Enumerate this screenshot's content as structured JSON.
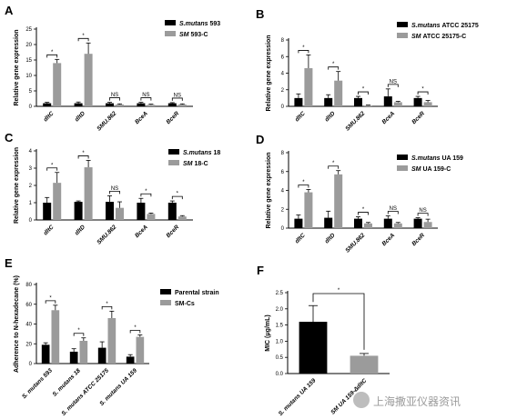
{
  "colors": {
    "parental": "#000000",
    "sm": "#9b9b9b",
    "watermark": "#9b9b9b"
  },
  "watermark": {
    "text": "上海撒亚仪器资讯",
    "icon": "wechat-logo-icon"
  },
  "chart_data": [
    {
      "type": "bar",
      "letter": "A",
      "title": "",
      "ylabel": "Relative gene expression",
      "ylim": [
        0,
        25
      ],
      "yticks": [
        0,
        5,
        10,
        15,
        20,
        25
      ],
      "categories": [
        "dltC",
        "dltD",
        "SMU.862",
        "BceA",
        "BceR"
      ],
      "series": [
        {
          "name": "S.mutans 593",
          "values": [
            1.0,
            1.0,
            1.0,
            1.0,
            1.0
          ],
          "errors": [
            0.3,
            0.4,
            0.3,
            0.3,
            0.2
          ]
        },
        {
          "name": "SM 593-C",
          "values": [
            14.0,
            17.0,
            0.6,
            0.5,
            0.6
          ],
          "errors": [
            1.2,
            3.5,
            0.2,
            0.2,
            0.2
          ]
        }
      ],
      "annotations": [
        "*",
        "*",
        "NS",
        "NS",
        "NS"
      ]
    },
    {
      "type": "bar",
      "letter": "B",
      "title": "",
      "ylabel": "Relative gene expression",
      "ylim": [
        0,
        8
      ],
      "yticks": [
        0,
        2,
        4,
        6,
        8
      ],
      "categories": [
        "dltC",
        "dltD",
        "SMU.862",
        "BceA",
        "BceR"
      ],
      "series": [
        {
          "name": "S.mutans ATCC 25175",
          "values": [
            1.0,
            1.0,
            1.0,
            1.2,
            1.0
          ],
          "errors": [
            0.5,
            0.4,
            0.2,
            0.9,
            0.2
          ]
        },
        {
          "name": "SM ATCC 25175-C",
          "values": [
            4.6,
            3.1,
            0.1,
            0.5,
            0.5
          ],
          "errors": [
            1.6,
            1.1,
            0.05,
            0.1,
            0.2
          ]
        }
      ],
      "annotations": [
        "*",
        "*",
        "*",
        "NS",
        "*"
      ]
    },
    {
      "type": "bar",
      "letter": "C",
      "title": "",
      "ylabel": "Relative gene expression",
      "ylim": [
        0,
        4
      ],
      "yticks": [
        0,
        1,
        2,
        3,
        4
      ],
      "categories": [
        "dltC",
        "dltD",
        "SMU.862",
        "BceA",
        "BceR"
      ],
      "series": [
        {
          "name": "S.mutans 18",
          "values": [
            1.0,
            1.05,
            1.05,
            1.0,
            1.0
          ],
          "errors": [
            0.3,
            0.05,
            0.35,
            0.25,
            0.1
          ]
        },
        {
          "name": "SM 18-C",
          "values": [
            2.15,
            3.05,
            0.7,
            0.35,
            0.2
          ],
          "errors": [
            0.6,
            0.4,
            0.35,
            0.05,
            0.05
          ]
        }
      ],
      "annotations": [
        "*",
        "*",
        "NS",
        "*",
        "*"
      ]
    },
    {
      "type": "bar",
      "letter": "D",
      "title": "",
      "ylabel": "Relative gene expression",
      "ylim": [
        0,
        8
      ],
      "yticks": [
        0,
        2,
        4,
        6,
        8
      ],
      "categories": [
        "dltC",
        "dltD",
        "SMU.862",
        "BceA",
        "BceR"
      ],
      "series": [
        {
          "name": "S.mutans UA 159",
          "values": [
            1.0,
            1.1,
            1.0,
            1.0,
            1.0
          ],
          "errors": [
            0.4,
            0.7,
            0.2,
            0.3,
            0.1
          ]
        },
        {
          "name": "SM UA 159-C",
          "values": [
            3.8,
            5.7,
            0.5,
            0.5,
            0.65
          ],
          "errors": [
            0.3,
            0.4,
            0.1,
            0.1,
            0.3
          ]
        }
      ],
      "annotations": [
        "*",
        "*",
        "*",
        "NS",
        "NS"
      ]
    },
    {
      "type": "bar",
      "letter": "E",
      "title": "",
      "ylabel": "Adherence to N-hexadecane (%)",
      "ylim": [
        0,
        80
      ],
      "yticks": [
        0,
        20,
        40,
        60,
        80
      ],
      "categories": [
        "S. mutans 593",
        "S. mutans 18",
        "S. mutans ATCC 25175",
        "S. mutans UA 159"
      ],
      "series": [
        {
          "name": "Parental strain",
          "values": [
            19,
            12,
            16,
            7
          ],
          "errors": [
            2,
            3,
            6,
            2
          ]
        },
        {
          "name": "SM-Cs",
          "values": [
            54,
            23,
            46,
            27
          ],
          "errors": [
            5,
            3,
            7,
            2
          ]
        }
      ],
      "annotations": [
        "*",
        "*",
        "*",
        "*"
      ]
    },
    {
      "type": "bar",
      "letter": "F",
      "title": "",
      "ylabel": "MIC (μg/mL)",
      "ylim": [
        0,
        2.5
      ],
      "yticks": [
        0.0,
        0.5,
        1.0,
        1.5,
        2.0,
        2.5
      ],
      "categories": [
        "S. mutans UA 159",
        "SM UA 159-ΔdltC"
      ],
      "bar_colors": [
        "#000000",
        "#9b9b9b"
      ],
      "values": [
        1.6,
        0.55
      ],
      "errors": [
        0.5,
        0.07
      ],
      "annotations": [
        "*"
      ]
    }
  ]
}
